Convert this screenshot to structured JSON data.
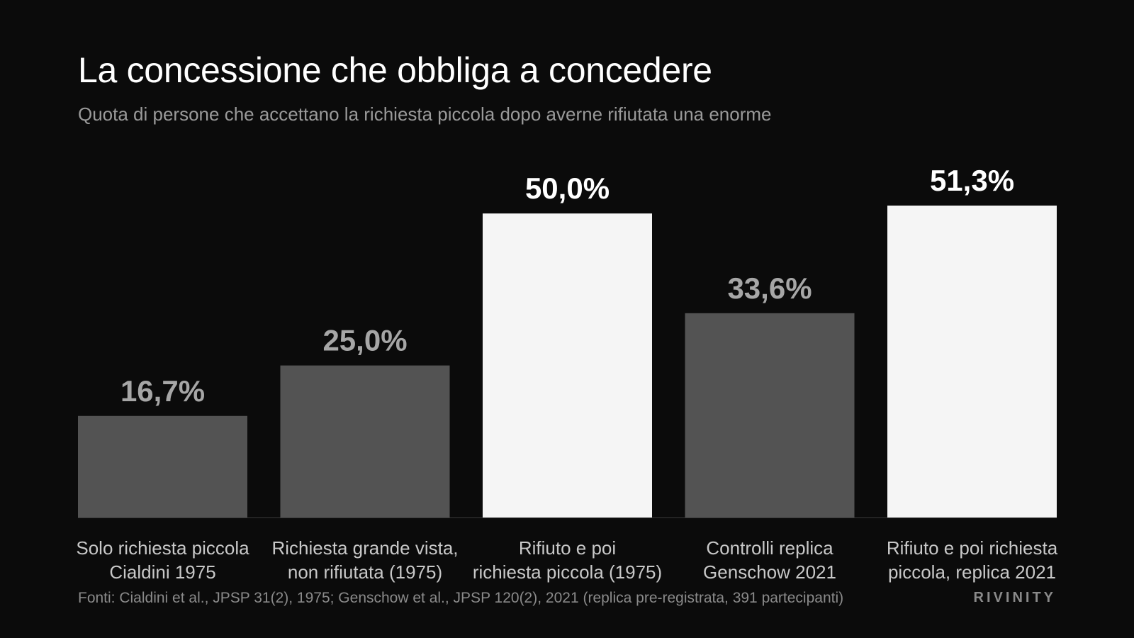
{
  "title": "La concessione che obbliga a concedere",
  "subtitle": "Quota di persone che accettano la richiesta piccola dopo averne rifiutata una enorme",
  "footer": {
    "source": "Fonti: Cialdini et al., JPSP 31(2), 1975; Genschow et al., JPSP 120(2), 2021 (replica pre-registrata, 391 partecipanti)",
    "brand": "RIVINITY"
  },
  "chart_data": {
    "type": "bar",
    "title": "La concessione che obbliga a concedere",
    "subtitle": "Quota di persone che accettano la richiesta piccola dopo averne rifiutata una enorme",
    "categories": [
      [
        "Solo richiesta piccola",
        "Cialdini 1975"
      ],
      [
        "Richiesta grande vista,",
        "non rifiutata (1975)"
      ],
      [
        "Rifiuto e poi",
        "richiesta piccola (1975)"
      ],
      [
        "Controlli replica",
        "Genschow 2021"
      ],
      [
        "Rifiuto e poi richiesta",
        "piccola, replica 2021"
      ]
    ],
    "values": [
      16.7,
      25.0,
      50.0,
      33.6,
      51.3
    ],
    "value_labels": [
      "16,7%",
      "25,0%",
      "50,0%",
      "33,6%",
      "51,3%"
    ],
    "highlight": [
      false,
      false,
      true,
      false,
      true
    ],
    "ylim": [
      0,
      51.3
    ],
    "xlabel": "",
    "ylabel": "",
    "grid": false,
    "legend": "none",
    "colors": {
      "background": "#0b0b0b",
      "bar_default": "#535353",
      "bar_highlight": "#f5f5f5",
      "label_default": "#a6a6a6",
      "label_highlight": "#ffffff",
      "category_text": "#c8c8c8",
      "baseline": "#3a3a3a"
    }
  }
}
